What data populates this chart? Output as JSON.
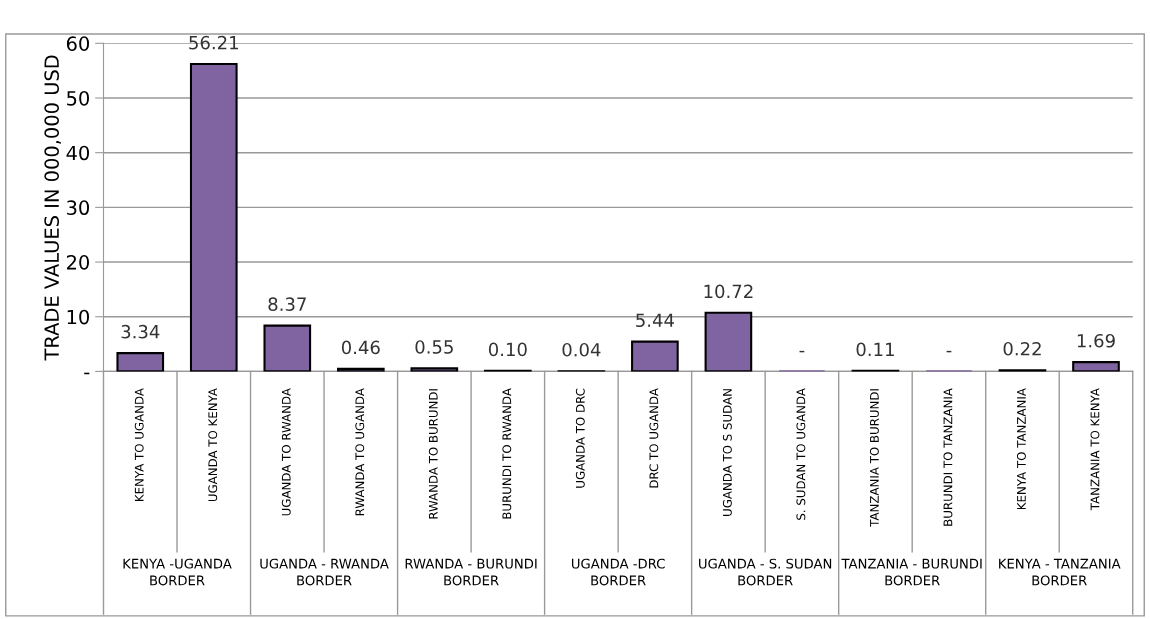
{
  "chart_data": {
    "type": "bar",
    "ylabel": "TRADE VALUES IN 000,000 USD",
    "categories": [
      "KENYA TO UGANDA",
      "UGANDA TO KENYA",
      "UGANDA TO RWANDA",
      "RWANDA TO UGANDA",
      "RWANDA TO BURUNDI",
      "BURUNDI TO RWANDA",
      "UGANDA TO DRC",
      "DRC TO UGANDA",
      "UGANDA TO S SUDAN",
      "S. SUDAN TO UGANDA",
      "TANZANIA TO BURUNDI",
      "BURUNDI TO TANZANIA",
      "KENYA TO TANZANIA",
      "TANZANIA TO KENYA"
    ],
    "values": [
      3.34,
      56.21,
      8.37,
      0.46,
      0.55,
      0.1,
      0.04,
      5.44,
      10.72,
      0,
      0.11,
      0,
      0.22,
      1.69
    ],
    "value_labels": [
      "3.34",
      "56.21",
      "8.37",
      "0.46",
      "0.55",
      "0.10",
      "0.04",
      "5.44",
      "10.72",
      "-",
      "0.11",
      "-",
      "0.22",
      "1.69"
    ],
    "color": "#8064a2",
    "ylim": [
      0,
      60
    ],
    "yticks": [
      {
        "value": 0,
        "label": "-"
      },
      10,
      20,
      30,
      40,
      50,
      60
    ],
    "grid": "y",
    "annotations": [
      "KENYA -UGANDA BORDER",
      "UGANDA - RWANDA BORDER",
      "RWANDA - BURUNDI BORDER",
      "UGANDA -DRC BORDER",
      "UGANDA - S. SUDAN BORDER",
      "TANZANIA - BURUNDI BORDER",
      "KENYA - TANZANIA BORDER"
    ]
  }
}
